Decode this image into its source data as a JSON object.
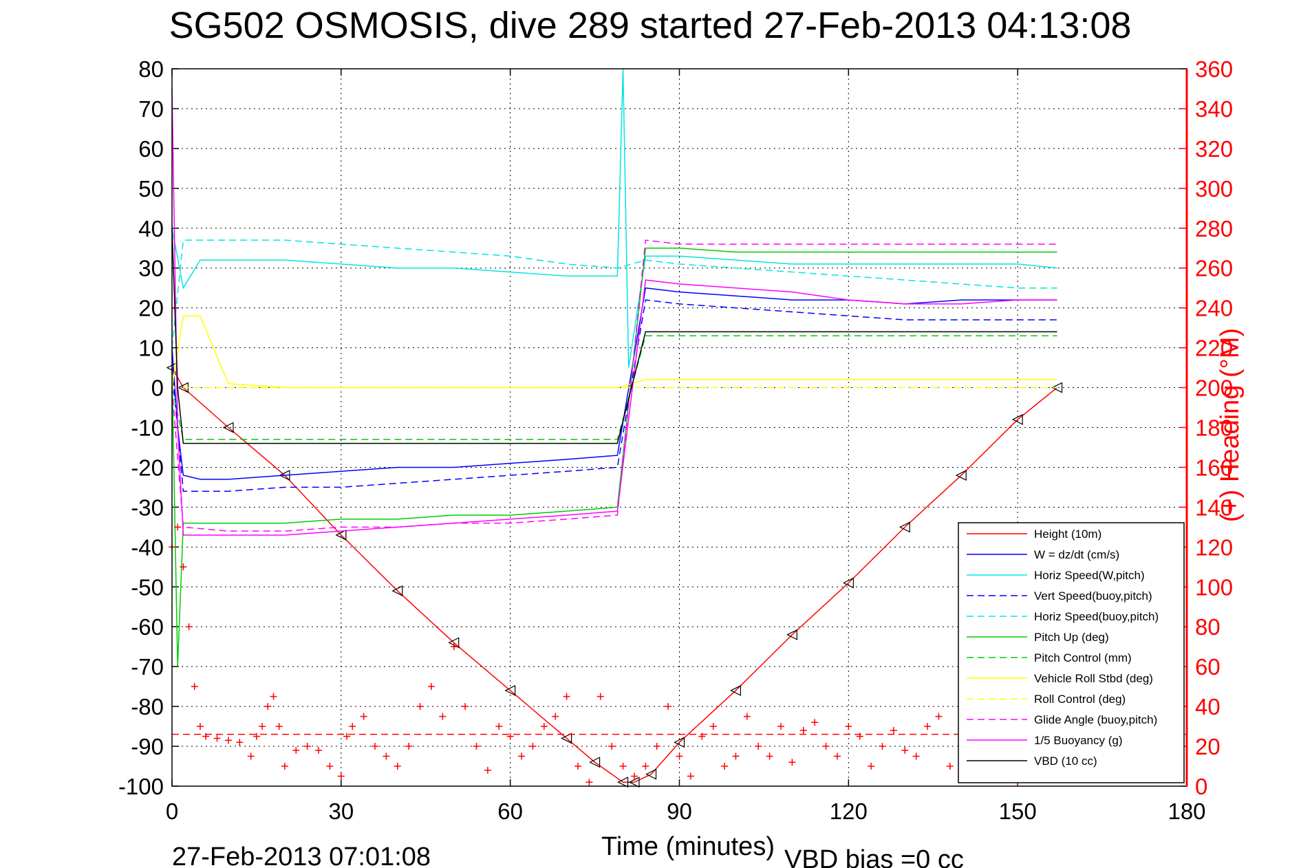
{
  "chart_data": {
    "type": "line",
    "title": "SG502 OSMOSIS, dive 289 started 27-Feb-2013 04:13:08",
    "xlabel": "Time (minutes)",
    "ylabel": "",
    "y2label": "(+) Heading (°M)",
    "xlim": [
      0,
      180
    ],
    "ylim": [
      -100,
      80
    ],
    "y2lim": [
      0,
      360
    ],
    "xticks": [
      "0",
      "30",
      "60",
      "90",
      "120",
      "150",
      "180"
    ],
    "yticks": [
      "80",
      "70",
      "60",
      "50",
      "40",
      "30",
      "20",
      "10",
      "0",
      "-10",
      "-20",
      "-30",
      "-40",
      "-50",
      "-60",
      "-70",
      "-80",
      "-90",
      "-100"
    ],
    "y2ticks": [
      "360",
      "340",
      "320",
      "300",
      "280",
      "260",
      "240",
      "220",
      "200",
      "180",
      "160",
      "140",
      "120",
      "100",
      "80",
      "60",
      "40",
      "20",
      "0"
    ],
    "grid": true,
    "legend_position": "lower-right",
    "footer_left": "27-Feb-2013 07:01:08",
    "footer_right": "VBD bias =0 cc",
    "series": [
      {
        "name": "Height (10m)",
        "color": "#ff0000",
        "style": "solid",
        "axis": "left",
        "x": [
          0,
          2,
          10,
          20,
          30,
          40,
          50,
          60,
          70,
          75,
          80,
          82,
          85,
          90,
          100,
          110,
          120,
          130,
          140,
          150,
          157
        ],
        "y": [
          5,
          0,
          -10,
          -22,
          -37,
          -51,
          -64,
          -76,
          -88,
          -94,
          -99,
          -99,
          -97,
          -89,
          -76,
          -62,
          -49,
          -35,
          -22,
          -8,
          0
        ]
      },
      {
        "name": "W = dz/dt (cm/s)",
        "color": "#0000ff",
        "style": "solid",
        "axis": "left",
        "x": [
          0,
          1,
          2,
          5,
          10,
          20,
          30,
          40,
          50,
          60,
          70,
          79,
          84,
          90,
          100,
          110,
          120,
          130,
          140,
          150,
          157
        ],
        "y": [
          10,
          -10,
          -22,
          -23,
          -23,
          -22,
          -21,
          -20,
          -20,
          -19,
          -18,
          -17,
          25,
          24,
          23,
          22,
          22,
          21,
          22,
          22,
          22
        ]
      },
      {
        "name": "Horiz Speed(W,pitch)",
        "color": "#00e5e5",
        "style": "solid",
        "axis": "left",
        "x": [
          0,
          2,
          5,
          10,
          20,
          30,
          40,
          50,
          60,
          70,
          79,
          80,
          81,
          84,
          90,
          100,
          110,
          120,
          130,
          140,
          150,
          157
        ],
        "y": [
          40,
          25,
          32,
          32,
          32,
          31,
          30,
          30,
          29,
          28,
          28,
          80,
          5,
          33,
          33,
          32,
          31,
          31,
          31,
          31,
          31,
          30
        ]
      },
      {
        "name": "Vert Speed(buoy,pitch)",
        "color": "#0000ff",
        "style": "dashed",
        "axis": "left",
        "x": [
          0,
          2,
          10,
          20,
          30,
          40,
          50,
          60,
          70,
          79,
          84,
          90,
          100,
          110,
          120,
          130,
          140,
          150,
          157
        ],
        "y": [
          5,
          -26,
          -26,
          -25,
          -25,
          -24,
          -23,
          -22,
          -21,
          -20,
          22,
          21,
          20,
          19,
          18,
          17,
          17,
          17,
          17
        ]
      },
      {
        "name": "Horiz Speed(buoy,pitch)",
        "color": "#00e5e5",
        "style": "dashed",
        "axis": "left",
        "x": [
          0,
          2,
          10,
          20,
          30,
          40,
          50,
          60,
          70,
          79,
          84,
          90,
          100,
          110,
          120,
          130,
          140,
          150,
          157
        ],
        "y": [
          10,
          37,
          37,
          37,
          36,
          35,
          34,
          33,
          31,
          30,
          32,
          31,
          30,
          29,
          28,
          27,
          26,
          25,
          25
        ]
      },
      {
        "name": "Pitch Up (deg)",
        "color": "#00cc00",
        "style": "solid",
        "axis": "left",
        "x": [
          0,
          1,
          2,
          5,
          10,
          20,
          30,
          40,
          50,
          60,
          70,
          79,
          84,
          90,
          100,
          110,
          120,
          130,
          140,
          150,
          157
        ],
        "y": [
          5,
          -70,
          -34,
          -34,
          -34,
          -34,
          -33,
          -33,
          -32,
          -32,
          -31,
          -30,
          35,
          35,
          34,
          34,
          34,
          34,
          34,
          34,
          34
        ]
      },
      {
        "name": "Pitch Control (mm)",
        "color": "#00cc00",
        "style": "dashed",
        "axis": "left",
        "x": [
          0,
          2,
          79,
          84,
          157
        ],
        "y": [
          0,
          -13,
          -13,
          13,
          13
        ]
      },
      {
        "name": "Vehicle Roll Stbd (deg)",
        "color": "#ffff00",
        "style": "solid",
        "axis": "left",
        "x": [
          0,
          2,
          5,
          10,
          20,
          30,
          40,
          50,
          60,
          70,
          79,
          84,
          90,
          100,
          110,
          120,
          130,
          140,
          150,
          157
        ],
        "y": [
          0,
          18,
          18,
          1,
          0,
          0,
          0,
          0,
          0,
          0,
          0,
          2,
          2,
          2,
          2,
          2,
          2,
          2,
          2,
          2
        ]
      },
      {
        "name": "Roll Control (deg)",
        "color": "#ffff00",
        "style": "dashed",
        "axis": "left",
        "x": [
          0,
          2,
          10,
          20,
          30,
          40,
          50,
          60,
          70,
          79,
          84,
          90,
          100,
          110,
          120,
          130,
          140,
          150,
          157
        ],
        "y": [
          0,
          0,
          0,
          0,
          0,
          0,
          0,
          0,
          0,
          0,
          0,
          0,
          0,
          0,
          0,
          0,
          0,
          0,
          0
        ]
      },
      {
        "name": "Glide Angle (buoy,pitch)",
        "color": "#ff00ff",
        "style": "dashed",
        "axis": "left",
        "x": [
          0,
          2,
          10,
          20,
          30,
          40,
          50,
          60,
          70,
          79,
          84,
          90,
          100,
          110,
          120,
          130,
          140,
          150,
          157
        ],
        "y": [
          0,
          -35,
          -36,
          -36,
          -35,
          -35,
          -34,
          -34,
          -33,
          -32,
          37,
          36,
          36,
          36,
          36,
          36,
          36,
          36,
          36
        ]
      },
      {
        "name": "1/5 Buoyancy (g)",
        "color": "#ff00ff",
        "style": "solid",
        "axis": "left",
        "x": [
          0,
          1,
          2,
          10,
          20,
          30,
          40,
          50,
          60,
          70,
          79,
          84,
          90,
          100,
          110,
          120,
          130,
          140,
          150,
          157
        ],
        "y": [
          75,
          -10,
          -37,
          -37,
          -37,
          -36,
          -35,
          -34,
          -33,
          -32,
          -31,
          27,
          26,
          25,
          24,
          22,
          21,
          21,
          22,
          22
        ]
      },
      {
        "name": "VBD (10 cc)",
        "color": "#000000",
        "style": "solid",
        "axis": "left",
        "x": [
          0,
          1,
          2,
          79,
          84,
          157
        ],
        "y": [
          40,
          0,
          -14,
          -14,
          14,
          14
        ]
      },
      {
        "name": "",
        "color": "#ff0000",
        "style": "markers-plus",
        "axis": "right",
        "x": [
          0,
          1,
          2,
          3,
          4,
          5,
          6,
          8,
          10,
          12,
          14,
          15,
          16,
          17,
          18,
          19,
          20,
          22,
          24,
          26,
          28,
          30,
          31,
          32,
          34,
          36,
          38,
          40,
          42,
          44,
          46,
          48,
          50,
          52,
          54,
          56,
          58,
          60,
          62,
          64,
          66,
          68,
          70,
          72,
          74,
          76,
          78,
          80,
          82,
          84,
          86,
          88,
          90,
          92,
          94,
          96,
          98,
          100,
          102,
          104,
          106,
          108,
          110,
          112,
          114,
          116,
          118,
          120,
          122,
          124,
          126,
          128,
          130,
          132,
          134,
          136,
          138,
          140,
          142,
          144,
          146,
          148,
          150,
          152,
          154,
          156,
          157
        ],
        "y": [
          120,
          130,
          110,
          80,
          50,
          30,
          25,
          24,
          23,
          22,
          15,
          25,
          30,
          40,
          45,
          30,
          10,
          18,
          20,
          18,
          10,
          5,
          25,
          30,
          35,
          20,
          15,
          10,
          20,
          40,
          50,
          35,
          70,
          40,
          20,
          8,
          30,
          25,
          15,
          20,
          30,
          35,
          45,
          10,
          2,
          45,
          20,
          10,
          5,
          10,
          20,
          40,
          15,
          5,
          25,
          30,
          10,
          15,
          35,
          20,
          15,
          30,
          12,
          28,
          32,
          20,
          15,
          30,
          25,
          10,
          20,
          28,
          18,
          15,
          30,
          35,
          10,
          5,
          15,
          25,
          10,
          5,
          2,
          10,
          25,
          30,
          20
        ]
      }
    ],
    "reference_lines": [
      {
        "color": "#ff0000",
        "style": "dashed",
        "axis": "right",
        "value": 26
      }
    ]
  }
}
